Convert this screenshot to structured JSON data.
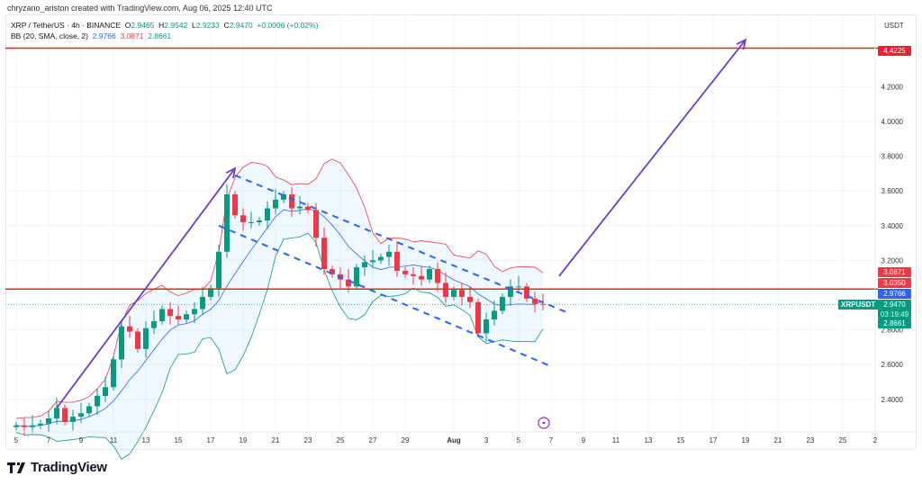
{
  "credit": "chryzano_ariston created with TradingView.com, Aug 06, 2025 12:40 UTC",
  "legend": {
    "symbol": "XRP / TetherUS · 4h · BINANCE",
    "o_label": "O",
    "o": "2.9465",
    "h_label": "H",
    "h": "2.9542",
    "l_label": "L",
    "l": "2.9233",
    "c_label": "C",
    "c": "2.9470",
    "change": "+0.0006 (+0.02%)",
    "bb_label": "BB (20, SMA, close, 2)",
    "bb_basis": "2.9766",
    "bb_upper": "3.0871",
    "bb_lower": "2.8661"
  },
  "axis": {
    "currency": "USDT",
    "y_ticks": [
      "4.2000",
      "4.0000",
      "3.8000",
      "3.6000",
      "3.4000",
      "3.2000",
      "2.8000",
      "2.6000",
      "2.4000"
    ],
    "x_ticks": [
      "5",
      "7",
      "9",
      "11",
      "13",
      "15",
      "17",
      "19",
      "21",
      "23",
      "25",
      "27",
      "29",
      "Aug",
      "3",
      "5",
      "7",
      "9",
      "11",
      "13",
      "15",
      "17",
      "19",
      "21",
      "23",
      "25",
      "2"
    ]
  },
  "price_tags": {
    "target": "4.4225",
    "bb_upper": "3.0871",
    "support": "3.0350",
    "bb_basis": "2.9766",
    "last": "2.9470",
    "countdown": "03:19:49",
    "bb_lower": "2.8661",
    "symbol": "XRPUSDT"
  },
  "colors": {
    "up": "#089981",
    "down": "#f23645",
    "basis": "#2962ff",
    "upper": "#f23645",
    "lower": "#089981",
    "level": "#e8222f",
    "arrow": "#6a3fc9",
    "channel": "#2962ff"
  },
  "brand": "TradingView",
  "chart_data": {
    "type": "candlestick",
    "title": "XRP / TetherUS · 4h · BINANCE",
    "ylabel": "USDT",
    "ylim": [
      2.2,
      4.55
    ],
    "xlim": [
      "2025-07-05",
      "2025-09-02"
    ],
    "grid": true,
    "closes": [
      [
        "07-05 00h",
        2.25
      ],
      [
        "07-05 12h",
        2.24
      ],
      [
        "07-06 00h",
        2.25
      ],
      [
        "07-06 12h",
        2.26
      ],
      [
        "07-07 00h",
        2.29
      ],
      [
        "07-07 12h",
        2.35
      ],
      [
        "07-08 00h",
        2.27
      ],
      [
        "07-08 12h",
        2.3
      ],
      [
        "07-09 00h",
        2.32
      ],
      [
        "07-09 12h",
        2.36
      ],
      [
        "07-10 00h",
        2.42
      ],
      [
        "07-10 12h",
        2.47
      ],
      [
        "07-11 00h",
        2.63
      ],
      [
        "07-11 12h",
        2.82
      ],
      [
        "07-12 00h",
        2.79
      ],
      [
        "07-12 12h",
        2.69
      ],
      [
        "07-13 00h",
        2.81
      ],
      [
        "07-13 12h",
        2.85
      ],
      [
        "07-14 00h",
        2.92
      ],
      [
        "07-14 12h",
        2.88
      ],
      [
        "07-15 00h",
        2.86
      ],
      [
        "07-15 12h",
        2.89
      ],
      [
        "07-16 00h",
        2.92
      ],
      [
        "07-16 12h",
        2.99
      ],
      [
        "07-17 00h",
        3.04
      ],
      [
        "07-17 12h",
        3.25
      ],
      [
        "07-18 00h",
        3.58
      ],
      [
        "07-18 12h",
        3.46
      ],
      [
        "07-19 00h",
        3.42
      ],
      [
        "07-19 12h",
        3.42
      ],
      [
        "07-20 00h",
        3.43
      ],
      [
        "07-20 12h",
        3.5
      ],
      [
        "07-21 00h",
        3.55
      ],
      [
        "07-21 12h",
        3.58
      ],
      [
        "07-22 00h",
        3.5
      ],
      [
        "07-22 12h",
        3.51
      ],
      [
        "07-23 00h",
        3.49
      ],
      [
        "07-23 12h",
        3.33
      ],
      [
        "07-24 00h",
        3.15
      ],
      [
        "07-24 12h",
        3.12
      ],
      [
        "07-25 00h",
        3.09
      ],
      [
        "07-25 12h",
        3.05
      ],
      [
        "07-26 00h",
        3.16
      ],
      [
        "07-26 12h",
        3.19
      ],
      [
        "07-27 00h",
        3.2
      ],
      [
        "07-27 12h",
        3.22
      ],
      [
        "07-28 00h",
        3.25
      ],
      [
        "07-28 12h",
        3.14
      ],
      [
        "07-29 00h",
        3.12
      ],
      [
        "07-29 12h",
        3.11
      ],
      [
        "07-30 00h",
        3.09
      ],
      [
        "07-30 12h",
        3.15
      ],
      [
        "07-31 00h",
        3.07
      ],
      [
        "07-31 12h",
        2.99
      ],
      [
        "08-01 00h",
        3.03
      ],
      [
        "08-01 12h",
        2.99
      ],
      [
        "08-02 00h",
        2.96
      ],
      [
        "08-02 12h",
        2.78
      ],
      [
        "08-03 00h",
        2.86
      ],
      [
        "08-03 12h",
        2.91
      ],
      [
        "08-04 00h",
        2.99
      ],
      [
        "08-04 12h",
        3.05
      ],
      [
        "08-05 00h",
        3.05
      ],
      [
        "08-05 12h",
        2.98
      ],
      [
        "08-06 00h",
        2.95
      ],
      [
        "08-06 12h",
        2.947
      ]
    ],
    "indicator": "BB (20, SMA, close, 2)",
    "horizontal_levels": [
      4.4225,
      3.035
    ],
    "annotations": [
      {
        "type": "arrow",
        "from": [
          "07-07 12h",
          2.35
        ],
        "to": [
          "07-18 12h",
          3.73
        ]
      },
      {
        "type": "arrow",
        "from": [
          "08-07 12h",
          3.11
        ],
        "to": [
          "08-19 00h",
          4.47
        ]
      },
      {
        "type": "dashed-line",
        "from": [
          "07-18 12h",
          3.69
        ],
        "to": [
          "08-08 00h",
          2.9
        ]
      },
      {
        "type": "dashed-line",
        "from": [
          "07-17 12h",
          3.4
        ],
        "to": [
          "08-07 00h",
          2.59
        ]
      }
    ]
  }
}
